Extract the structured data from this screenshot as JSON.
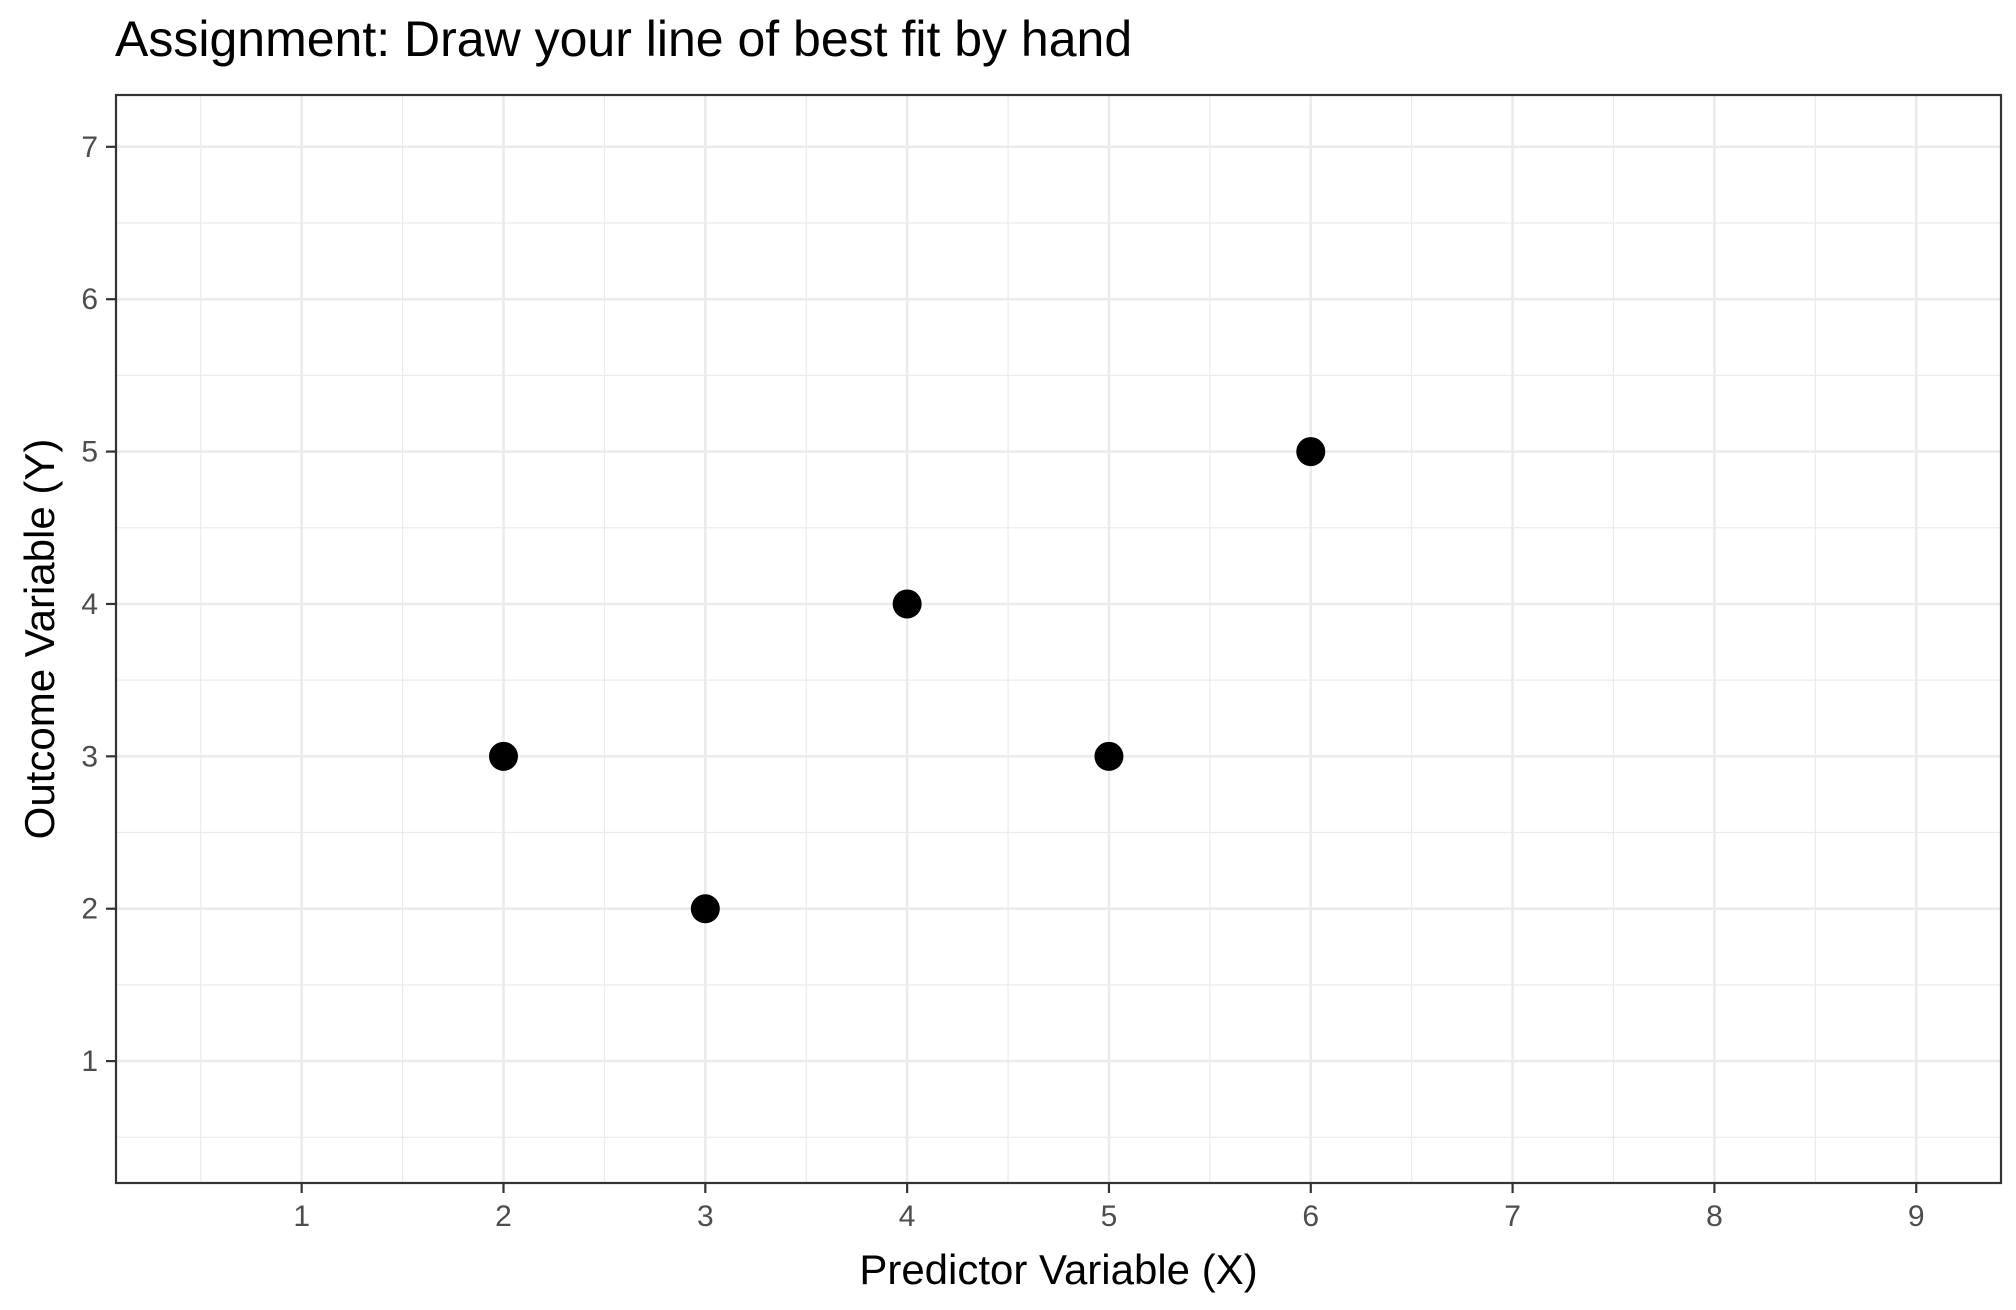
{
  "chart_data": {
    "type": "scatter",
    "title": "Assignment: Draw your line of best fit by hand",
    "xlabel": "Predictor Variable (X)",
    "ylabel": "Outcome Variable (Y)",
    "xlim": [
      0.08,
      9.42
    ],
    "ylim": [
      0.2,
      7.34
    ],
    "xticks": [
      1,
      2,
      3,
      4,
      5,
      6,
      7,
      8,
      9
    ],
    "yticks": [
      1,
      2,
      3,
      4,
      5,
      6,
      7
    ],
    "grid": true,
    "point_color": "#000000",
    "points": [
      {
        "x": 2,
        "y": 3
      },
      {
        "x": 3,
        "y": 2
      },
      {
        "x": 4,
        "y": 4
      },
      {
        "x": 5,
        "y": 3
      },
      {
        "x": 6,
        "y": 5
      }
    ]
  }
}
